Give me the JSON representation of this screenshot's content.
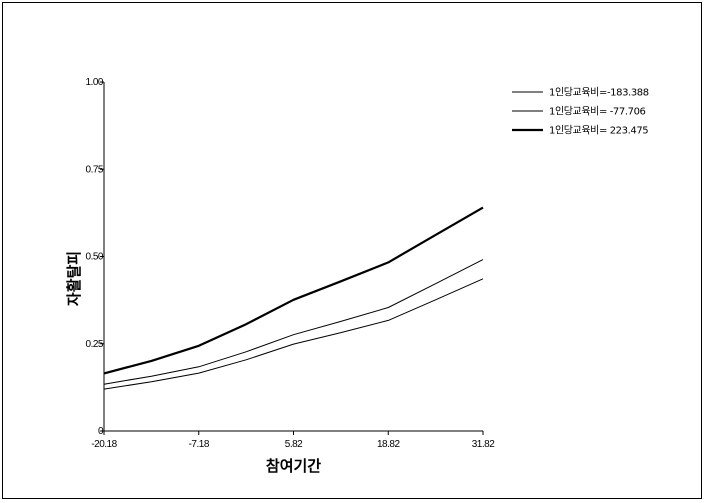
{
  "chart_data": {
    "type": "line",
    "title": "",
    "xlabel": "참여기간",
    "ylabel": "자활탈피",
    "xlim": [
      -20.18,
      31.82
    ],
    "ylim": [
      0,
      1
    ],
    "xticks": [
      -20.18,
      -7.18,
      5.82,
      18.82,
      31.82
    ],
    "xtick_labels": [
      "-20.18",
      "-7.18",
      "5.82",
      "18.82",
      "31.82"
    ],
    "yticks": [
      0,
      0.25,
      0.5,
      0.75,
      1.0
    ],
    "ytick_labels": [
      "0",
      "0.25",
      "0.50",
      "0.75",
      "1.00"
    ],
    "grid": false,
    "legend_position": "top-right",
    "x": [
      -20.18,
      -13.68,
      -7.18,
      -0.68,
      5.82,
      12.32,
      18.82,
      25.32,
      31.82
    ],
    "series": [
      {
        "name": "1인당교육비=-183.388",
        "values": [
          0.12,
          0.141,
          0.166,
          0.204,
          0.249,
          0.282,
          0.317,
          0.376,
          0.436
        ],
        "line_width": 1,
        "color": "#000000"
      },
      {
        "name": "1인당교육비= -77.706",
        "values": [
          0.134,
          0.157,
          0.184,
          0.227,
          0.276,
          0.314,
          0.354,
          0.422,
          0.491
        ],
        "line_width": 1,
        "color": "#000000"
      },
      {
        "name": "1인당교육비= 223.475",
        "values": [
          0.165,
          0.201,
          0.244,
          0.306,
          0.376,
          0.429,
          0.483,
          0.562,
          0.64
        ],
        "line_width": 2.2,
        "color": "#000000"
      }
    ]
  }
}
